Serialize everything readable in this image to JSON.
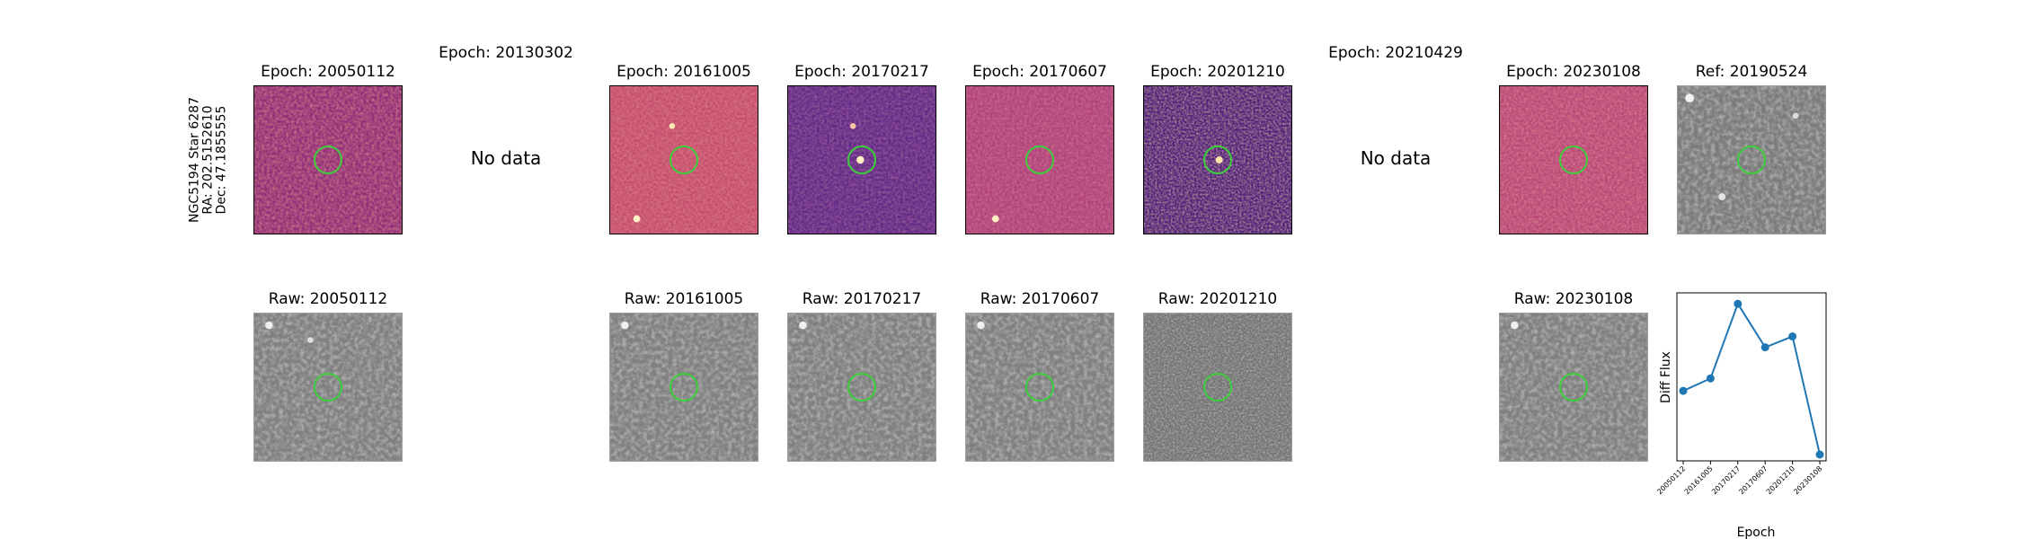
{
  "star": {
    "name": "NGC5194 Star 6287",
    "ra": "RA: 202.5152610",
    "dec": "Dec: 47.1855555"
  },
  "no_data_label": "No data",
  "top_titles": {
    "e1": "Epoch: 20050112",
    "e2": "Epoch: 20130302",
    "e3": "Epoch: 20161005",
    "e4": "Epoch: 20170217",
    "e5": "Epoch: 20170607",
    "e6": "Epoch: 20201210",
    "e7": "Epoch: 20210429",
    "e8": "Epoch: 20230108",
    "ref": "Ref: 20190524"
  },
  "raw_titles": {
    "r1": "Raw: 20050112",
    "r3": "Raw: 20161005",
    "r4": "Raw: 20170217",
    "r5": "Raw: 20170607",
    "r6": "Raw: 20201210",
    "r8": "Raw: 20230108"
  },
  "colors": {
    "circle": "#3ccf3c",
    "line": "#1f77b4"
  },
  "chart_data": {
    "type": "line",
    "categories": [
      "20050112",
      "20161005",
      "20170217",
      "20170607",
      "20201210",
      "20230108"
    ],
    "values": [
      0.41,
      0.49,
      0.97,
      0.69,
      0.76,
      0.0
    ],
    "xlabel": "Epoch",
    "ylabel": "Diff Flux",
    "ylim": [
      0,
      1
    ],
    "yticks": "none",
    "grid": false,
    "marker": "circle"
  }
}
